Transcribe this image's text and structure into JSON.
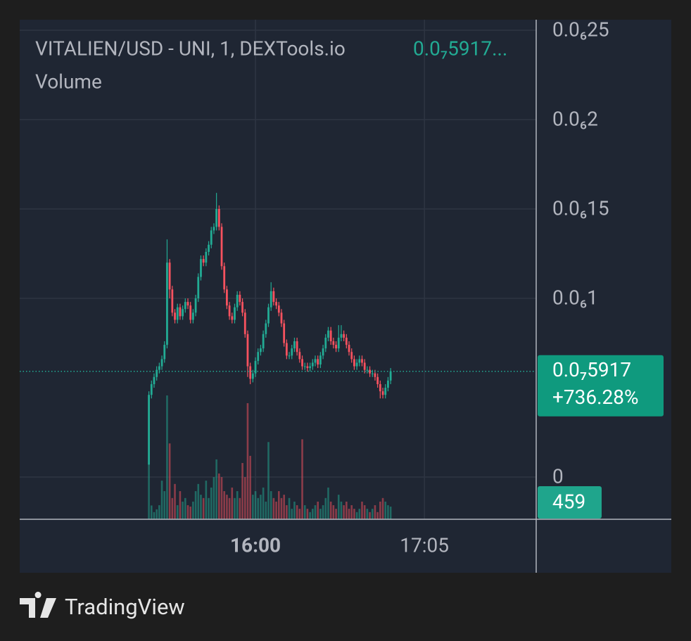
{
  "chart_data": {
    "type": "candlestick",
    "title": "VITALIEN/USD - UNI, 1, DEXTools.io",
    "legend_value": "0.0₇5917...",
    "volume_label": "Volume",
    "x": [
      919,
      920,
      921,
      922,
      923,
      924,
      925,
      926,
      927,
      928,
      929,
      930,
      931,
      932,
      933,
      934,
      935,
      936,
      937,
      938,
      939,
      940,
      941,
      942,
      943,
      944,
      945,
      946,
      947,
      948,
      949,
      950,
      951,
      952,
      953,
      954,
      955,
      956,
      957,
      958,
      959,
      960,
      961,
      962,
      963,
      964,
      965,
      966,
      967,
      968,
      969,
      970,
      971,
      972,
      973,
      974,
      975,
      976,
      977,
      978,
      979,
      980,
      981,
      982,
      983,
      984,
      985,
      986,
      987,
      988,
      989,
      990,
      991,
      992,
      993,
      994,
      995,
      996,
      997,
      998,
      999,
      1000,
      1001,
      1002,
      1003,
      1004,
      1005,
      1006,
      1007,
      1008,
      1009,
      1010,
      1011,
      1012
    ],
    "open": [
      7e-09,
      4.6e-08,
      5.2e-08,
      5.6e-08,
      6e-08,
      6.2e-08,
      6.6e-08,
      7.4e-08,
      1.2e-07,
      1.05e-07,
      9.2e-08,
      8.8e-08,
      9.5e-08,
      9e-08,
      9.4e-08,
      9.8e-08,
      9.6e-08,
      8.8e-08,
      9.2e-08,
      1e-07,
      1.12e-07,
      1.22e-07,
      1.2e-07,
      1.26e-07,
      1.3e-07,
      1.38e-07,
      1.4e-07,
      1.5e-07,
      1.4e-07,
      1.18e-07,
      1.05e-07,
      9.6e-08,
      9e-08,
      8.8e-08,
      9.5e-08,
      1.02e-07,
      9.8e-08,
      9.2e-08,
      8e-08,
      6.2e-08,
      5.5e-08,
      5.8e-08,
      6.5e-08,
      7e-08,
      7.2e-08,
      8e-08,
      8.6e-08,
      9.5e-08,
      1.04e-07,
      9.8e-08,
      9.6e-08,
      9.2e-08,
      8.6e-08,
      7.5e-08,
      6.8e-08,
      6.8e-08,
      7.2e-08,
      7.6e-08,
      7e-08,
      6.6e-08,
      6.2e-08,
      6.2e-08,
      6.1e-08,
      6.2e-08,
      6.4e-08,
      6.6e-08,
      6.3e-08,
      6.8e-08,
      7.2e-08,
      7.8e-08,
      8.2e-08,
      7.6e-08,
      7.4e-08,
      7.2e-08,
      7.8e-08,
      8e-08,
      7.8e-08,
      7.4e-08,
      7e-08,
      6.6e-08,
      6.2e-08,
      6.4e-08,
      6.6e-08,
      6.4e-08,
      6e-08,
      6e-08,
      5.8e-08,
      5.8e-08,
      5.6e-08,
      5.2e-08,
      4.8e-08,
      4.6e-08,
      5e-08,
      5.4e-08
    ],
    "high": [
      4.8e-08,
      5.4e-08,
      5.8e-08,
      6.2e-08,
      6.4e-08,
      6.8e-08,
      7.6e-08,
      1.33e-07,
      1.22e-07,
      1.07e-07,
      9.4e-08,
      9.7e-08,
      9.7e-08,
      9.6e-08,
      1e-07,
      1e-07,
      9.8e-08,
      9.4e-08,
      1.02e-07,
      1.14e-07,
      1.24e-07,
      1.24e-07,
      1.28e-07,
      1.32e-07,
      1.4e-07,
      1.42e-07,
      1.59e-07,
      1.52e-07,
      1.42e-07,
      1.2e-07,
      1.07e-07,
      9.8e-08,
      9.2e-08,
      9.7e-08,
      1.04e-07,
      1.04e-07,
      1e-07,
      9.4e-08,
      8.2e-08,
      6.4e-08,
      6e-08,
      6.7e-08,
      7.2e-08,
      7.4e-08,
      8.2e-08,
      8.8e-08,
      9.7e-08,
      1.09e-07,
      1.06e-07,
      1e-07,
      9.8e-08,
      9.4e-08,
      8.8e-08,
      7.7e-08,
      7e-08,
      7.4e-08,
      7.8e-08,
      7.8e-08,
      7.2e-08,
      6.8e-08,
      6.4e-08,
      6.4e-08,
      6.4e-08,
      6.6e-08,
      6.8e-08,
      6.8e-08,
      7e-08,
      7.4e-08,
      8e-08,
      8.4e-08,
      8.4e-08,
      7.8e-08,
      7.6e-08,
      8.5e-08,
      8.5e-08,
      8.2e-08,
      8e-08,
      7.6e-08,
      7.2e-08,
      6.8e-08,
      6.6e-08,
      6.8e-08,
      6.8e-08,
      6.6e-08,
      6.2e-08,
      6.2e-08,
      6e-08,
      6e-08,
      5.8e-08,
      5.4e-08,
      5e-08,
      5.2e-08,
      5.6e-08,
      6.1e-08
    ],
    "low": [
      7e-09,
      4.4e-08,
      5e-08,
      5.4e-08,
      5.8e-08,
      6e-08,
      6.4e-08,
      7.2e-08,
      1e-07,
      9e-08,
      8.6e-08,
      8.6e-08,
      8.8e-08,
      8.8e-08,
      9.2e-08,
      9.4e-08,
      8.6e-08,
      8.6e-08,
      9e-08,
      9.8e-08,
      1.1e-07,
      1.18e-07,
      1.18e-07,
      1.24e-07,
      1.28e-07,
      1.36e-07,
      1.38e-07,
      1.38e-07,
      1.16e-07,
      1.03e-07,
      9.4e-08,
      8.8e-08,
      8.6e-08,
      8.6e-08,
      9.3e-08,
      9.6e-08,
      9e-08,
      7.8e-08,
      5.6e-08,
      5.2e-08,
      5.3e-08,
      5.6e-08,
      6.3e-08,
      6.8e-08,
      7e-08,
      7.8e-08,
      8.4e-08,
      9.3e-08,
      9.6e-08,
      9.4e-08,
      9e-08,
      8.4e-08,
      7.3e-08,
      6.6e-08,
      6.6e-08,
      6.6e-08,
      7e-08,
      6.8e-08,
      6.4e-08,
      6e-08,
      6e-08,
      5.9e-08,
      5.9e-08,
      6e-08,
      6.2e-08,
      6.1e-08,
      6.1e-08,
      6.6e-08,
      7e-08,
      7.6e-08,
      7.4e-08,
      7.2e-08,
      7e-08,
      7e-08,
      7.6e-08,
      7.6e-08,
      7.2e-08,
      6.8e-08,
      6.4e-08,
      6e-08,
      6e-08,
      6.2e-08,
      6.2e-08,
      5.8e-08,
      5.8e-08,
      5.6e-08,
      5.6e-08,
      5.4e-08,
      5e-08,
      4.4e-08,
      4.4e-08,
      4.4e-08,
      4.8e-08,
      5.2e-08
    ],
    "close": [
      4.6e-08,
      5.2e-08,
      5.6e-08,
      6e-08,
      6.2e-08,
      6.6e-08,
      7.4e-08,
      1.2e-07,
      1.05e-07,
      9.2e-08,
      8.8e-08,
      9.5e-08,
      9e-08,
      9.4e-08,
      9.8e-08,
      9.6e-08,
      8.8e-08,
      9.2e-08,
      1e-07,
      1.12e-07,
      1.22e-07,
      1.2e-07,
      1.26e-07,
      1.3e-07,
      1.38e-07,
      1.4e-07,
      1.5e-07,
      1.4e-07,
      1.18e-07,
      1.05e-07,
      9.6e-08,
      9e-08,
      8.8e-08,
      9.5e-08,
      1.02e-07,
      9.8e-08,
      9.2e-08,
      8e-08,
      6.2e-08,
      5.5e-08,
      5.8e-08,
      6.5e-08,
      7e-08,
      7.2e-08,
      8e-08,
      8.6e-08,
      9.5e-08,
      1.04e-07,
      9.8e-08,
      9.6e-08,
      9.2e-08,
      8.6e-08,
      7.5e-08,
      6.8e-08,
      6.8e-08,
      7.2e-08,
      7.6e-08,
      7e-08,
      6.6e-08,
      6.2e-08,
      6.2e-08,
      6.1e-08,
      6.2e-08,
      6.4e-08,
      6.6e-08,
      6.3e-08,
      6.8e-08,
      7.2e-08,
      7.8e-08,
      8.2e-08,
      7.6e-08,
      7.4e-08,
      7.2e-08,
      7.8e-08,
      8e-08,
      7.8e-08,
      7.4e-08,
      7e-08,
      6.6e-08,
      6.2e-08,
      6.4e-08,
      6.6e-08,
      6.4e-08,
      6e-08,
      6e-08,
      5.8e-08,
      5.8e-08,
      5.6e-08,
      5.2e-08,
      4.8e-08,
      4.6e-08,
      5e-08,
      5.4e-08,
      5.917e-08
    ],
    "volume": [
      2000,
      500,
      260,
      360,
      510,
      1400,
      1020,
      4490,
      2750,
      770,
      1280,
      510,
      1020,
      640,
      770,
      510,
      460,
      640,
      1020,
      1280,
      890,
      770,
      1400,
      770,
      1150,
      1530,
      2170,
      1660,
      1530,
      1020,
      890,
      770,
      1150,
      770,
      1020,
      770,
      2040,
      1530,
      4210,
      2300,
      890,
      1020,
      770,
      890,
      1150,
      640,
      2800,
      1020,
      770,
      640,
      1020,
      770,
      890,
      510,
      770,
      380,
      640,
      510,
      380,
      2900,
      510,
      380,
      260,
      380,
      510,
      640,
      380,
      510,
      770,
      1150,
      640,
      510,
      380,
      890,
      640,
      510,
      640,
      380,
      510,
      380,
      260,
      380,
      640,
      510,
      380,
      260,
      380,
      510,
      260,
      640,
      770,
      640,
      510,
      459
    ],
    "up_color": "#22ab94",
    "down_color": "#f7525f",
    "xlim": [
      869.3,
      1068
    ],
    "xticks": [
      {
        "value": 960,
        "label": "16:00"
      },
      {
        "value": 1025,
        "label": "17:05"
      }
    ],
    "ylim": [
      -2.36e-08,
      2.559e-07
    ],
    "yticks": [
      0,
      {
        "value": 1e-07,
        "label": "0.0₆1"
      },
      {
        "value": 1.5e-07,
        "label": "0.0₆15"
      },
      {
        "value": 2e-07,
        "label": "0.0₆2"
      },
      {
        "value": 2.5e-07,
        "label": "0.0₆25"
      }
    ],
    "grid": true,
    "last_price": {
      "value": 5.917e-08,
      "label": "0.0₇5917"
    },
    "change": {
      "value": 736.28,
      "label": "+736.28%"
    },
    "branding": "TradingView"
  }
}
